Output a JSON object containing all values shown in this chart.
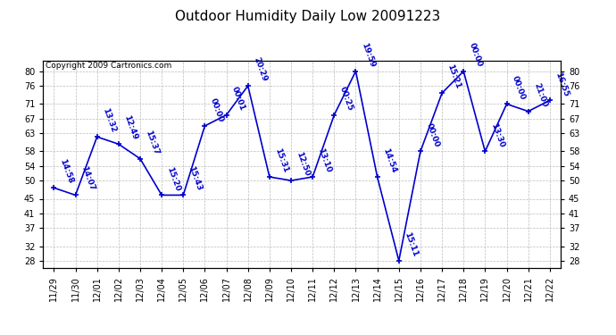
{
  "title": "Outdoor Humidity Daily Low 20091223",
  "copyright": "Copyright 2009 Cartronics.com",
  "x_labels": [
    "11/29",
    "11/30",
    "12/01",
    "12/02",
    "12/03",
    "12/04",
    "12/05",
    "12/06",
    "12/07",
    "12/08",
    "12/09",
    "12/10",
    "12/11",
    "12/12",
    "12/13",
    "12/14",
    "12/15",
    "12/16",
    "12/17",
    "12/18",
    "12/19",
    "12/20",
    "12/21",
    "12/22"
  ],
  "y_values": [
    48,
    46,
    62,
    60,
    56,
    46,
    46,
    65,
    68,
    76,
    51,
    50,
    51,
    68,
    80,
    51,
    28,
    58,
    74,
    80,
    58,
    71,
    69,
    72
  ],
  "time_labels": [
    "14:58",
    "14:07",
    "13:32",
    "12:49",
    "15:37",
    "15:20",
    "15:43",
    "00:00",
    "00:01",
    "20:29",
    "15:31",
    "12:50",
    "13:10",
    "00:25",
    "19:59",
    "14:54",
    "15:11",
    "00:00",
    "15:21",
    "00:00",
    "13:30",
    "00:00",
    "21:00",
    "16:55"
  ],
  "line_color": "#0000CC",
  "background_color": "#ffffff",
  "grid_color": "#bbbbbb",
  "y_ticks": [
    28,
    32,
    37,
    41,
    45,
    50,
    54,
    58,
    63,
    67,
    71,
    76,
    80
  ],
  "ylim": [
    26,
    83
  ],
  "title_fontsize": 11,
  "tick_fontsize": 7,
  "label_fontsize": 6.5,
  "copyright_fontsize": 6.5
}
